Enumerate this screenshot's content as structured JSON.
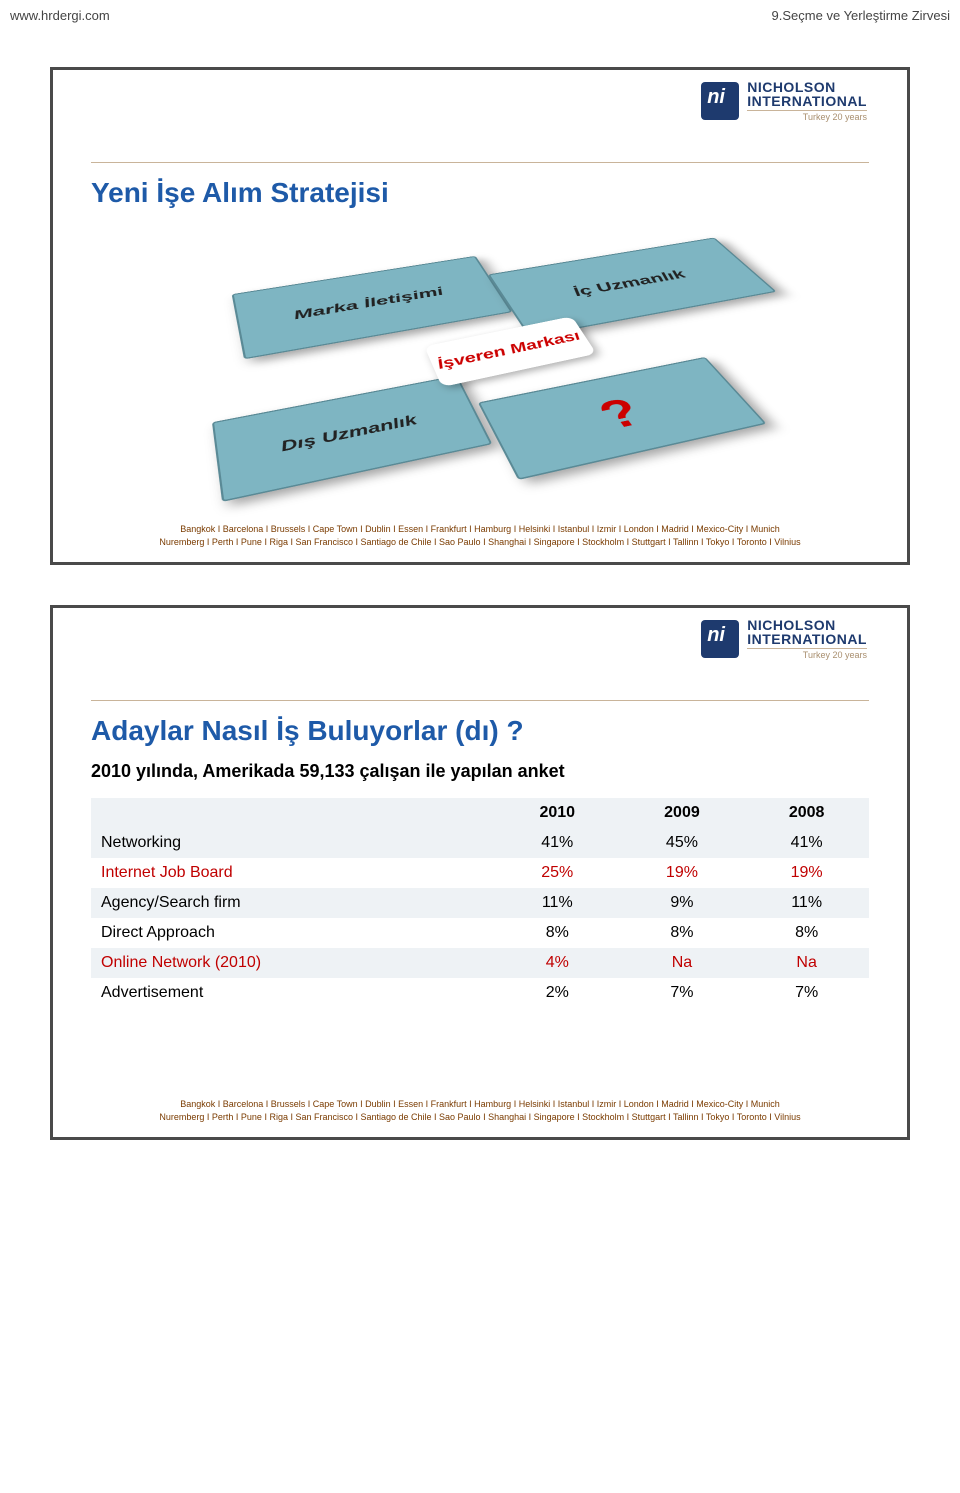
{
  "header": {
    "left": "www.hrdergi.com",
    "right": "9.Seçme ve Yerleştirme Zirvesi"
  },
  "logo": {
    "line1": "NICHOLSON",
    "line2": "INTERNATIONAL",
    "sub": "Turkey 20 years"
  },
  "slide1": {
    "title": "Yeni İşe Alım Stratejisi",
    "quads": {
      "tl": "Marka İletişimi",
      "tr": "İç Uzmanlık",
      "bl": "Dış Uzmanlık",
      "br_mark": "?",
      "center": "İşveren Markası"
    }
  },
  "slide2": {
    "title": "Adaylar Nasıl İş Buluyorlar (dı) ?",
    "subtitle": "2010 yılında, Amerikada 59,133 çalışan ile yapılan anket",
    "table": {
      "columns": [
        "",
        "2010",
        "2009",
        "2008"
      ],
      "rows": [
        {
          "label": "Networking",
          "v": [
            "41%",
            "45%",
            "41%"
          ],
          "highlight": false,
          "band": true
        },
        {
          "label": "Internet Job Board",
          "v": [
            "25%",
            "19%",
            "19%"
          ],
          "highlight": true,
          "band": false
        },
        {
          "label": "Agency/Search firm",
          "v": [
            "11%",
            "9%",
            "11%"
          ],
          "highlight": false,
          "band": true
        },
        {
          "label": "Direct Approach",
          "v": [
            "8%",
            "8%",
            "8%"
          ],
          "highlight": false,
          "band": false
        },
        {
          "label": "Online Network (2010)",
          "v": [
            "4%",
            "Na",
            "Na"
          ],
          "highlight": true,
          "band": true
        },
        {
          "label": "Advertisement",
          "v": [
            "2%",
            "7%",
            "7%"
          ],
          "highlight": false,
          "band": false
        }
      ]
    }
  },
  "cities": {
    "line1": "Bangkok  I  Barcelona  I  Brussels  I  Cape Town  I  Dublin  I  Essen  I  Frankfurt  I  Hamburg  I  Helsinki  I  Istanbul  I  Izmir  I  London  I  Madrid  I  Mexico-City  I  Munich",
    "line2": "Nuremberg  I  Perth  I  Pune  I  Riga  I  San Francisco  I  Santiago de Chile  I  Sao Paulo  I  Shanghai  I  Singapore  I  Stockholm  I  Stuttgart  I  Tallinn  I  Tokyo  I  Toronto  I  Vilnius"
  },
  "colors": {
    "title_blue": "#1e5aa8",
    "logo_navy": "#1e3a6e",
    "accent_tan": "#c9b49a",
    "quad_fill": "#7eb5c2",
    "quad_border": "#5a8a96",
    "red": "#cc0000",
    "table_band": "#eef2f5",
    "cities_brown": "#7a3b00"
  }
}
